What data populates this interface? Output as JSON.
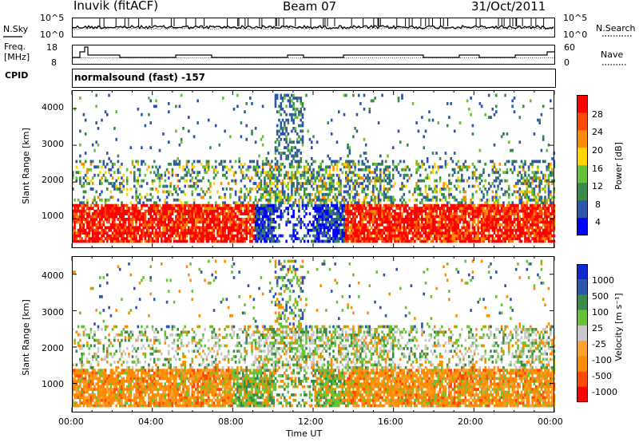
{
  "header": {
    "station": "Inuvik (fitACF)",
    "beam": "Beam 07",
    "date": "31/Oct/2011"
  },
  "sky_panel": {
    "left_label": "N.Sky",
    "ticks_left": [
      "10^5",
      "10^0"
    ],
    "ticks_right": [
      "10^5",
      "10^0"
    ],
    "right_label": "N.Search"
  },
  "freq_panel": {
    "left_label_1": "Freq.",
    "left_label_2": "[MHz]",
    "ticks_left": [
      "18",
      "8"
    ],
    "ticks_right": [
      "60",
      "0"
    ],
    "right_label": "Nave"
  },
  "cpid": {
    "label": "CPID",
    "value": "normalsound (fast) -157"
  },
  "colors": {
    "power": [
      "#0000ff",
      "#2e56a8",
      "#3a8a4a",
      "#68c238",
      "#ffd400",
      "#ff8c00",
      "#ff4800",
      "#ff0000"
    ],
    "velocity": [
      "#ff0000",
      "#ff4800",
      "#ff8c00",
      "#ffa030",
      "#c8c8c8",
      "#68c238",
      "#3a8a4a",
      "#2e56a8",
      "#1028d0"
    ]
  },
  "chart_data": [
    {
      "type": "heatmap",
      "name": "power",
      "ylabel": "Slant Range [km]",
      "yticks": [
        "1000",
        "2000",
        "3000",
        "4000"
      ],
      "ylim": [
        200,
        4500
      ],
      "colorbar_label": "Power [dB]",
      "colorbar_ticks": [
        "4",
        "8",
        "12",
        "16",
        "20",
        "24",
        "28"
      ],
      "colorbar_range": [
        0,
        30
      ]
    },
    {
      "type": "heatmap",
      "name": "velocity",
      "ylabel": "Slant Range [km]",
      "yticks": [
        "1000",
        "2000",
        "3000",
        "4000"
      ],
      "ylim": [
        200,
        4500
      ],
      "colorbar_label": "Velocity [m s⁻¹]",
      "colorbar_ticks": [
        "1000",
        "500",
        "100",
        "25",
        "-25",
        "-100",
        "-500",
        "-1000"
      ],
      "xlabel": "Time UT",
      "xticks": [
        "00:00",
        "04:00",
        "08:00",
        "12:00",
        "16:00",
        "20:00",
        "00:00"
      ]
    }
  ]
}
